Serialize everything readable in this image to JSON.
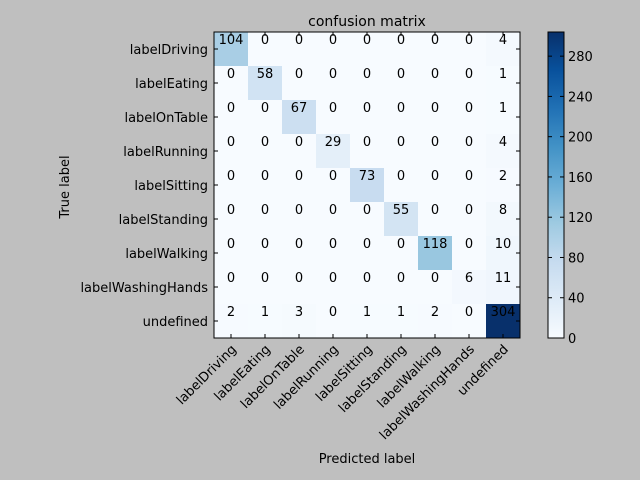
{
  "chart_data": {
    "type": "heatmap",
    "title": "confusion matrix",
    "xlabel": "Predicted label",
    "ylabel": "True label",
    "labels": [
      "labelDriving",
      "labelEating",
      "labelOnTable",
      "labelRunning",
      "labelSitting",
      "labelStanding",
      "labelWalking",
      "labelWashingHands",
      "undefined"
    ],
    "matrix": [
      [
        104,
        0,
        0,
        0,
        0,
        0,
        0,
        0,
        4
      ],
      [
        0,
        58,
        0,
        0,
        0,
        0,
        0,
        0,
        1
      ],
      [
        0,
        0,
        67,
        0,
        0,
        0,
        0,
        0,
        1
      ],
      [
        0,
        0,
        0,
        29,
        0,
        0,
        0,
        0,
        4
      ],
      [
        0,
        0,
        0,
        0,
        73,
        0,
        0,
        0,
        2
      ],
      [
        0,
        0,
        0,
        0,
        0,
        55,
        0,
        0,
        8
      ],
      [
        0,
        0,
        0,
        0,
        0,
        0,
        118,
        0,
        10
      ],
      [
        0,
        0,
        0,
        0,
        0,
        0,
        0,
        6,
        11
      ],
      [
        2,
        1,
        3,
        0,
        1,
        1,
        2,
        0,
        304
      ]
    ],
    "colormap": "Blues",
    "colorbar": {
      "range": [
        0,
        304
      ],
      "ticks": [
        0,
        40,
        80,
        120,
        160,
        200,
        240,
        280
      ]
    }
  },
  "colors": {
    "background": "#bfbfbf",
    "blues_low": "#f7fbff",
    "blues_high": "#08306b"
  }
}
